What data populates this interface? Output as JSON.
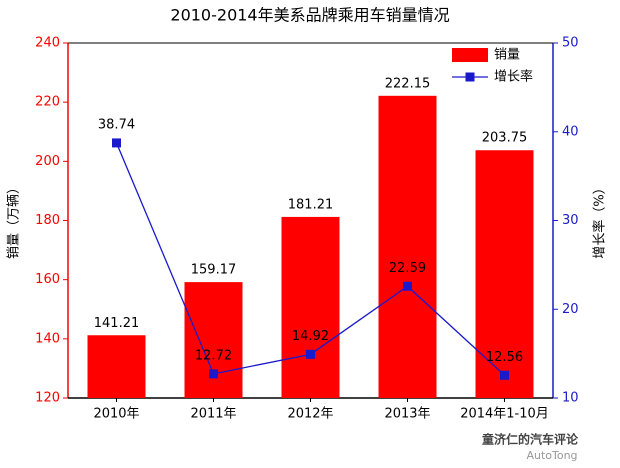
{
  "chart_data": {
    "type": "bar",
    "title": "2010-2014年美系品牌乘用车销量情况",
    "y_label": "销量（万辆）",
    "y2_label": "增长率（%）",
    "categories": [
      "2010年",
      "2011年",
      "2012年",
      "2013年",
      "2014年1-10月"
    ],
    "series": [
      {
        "name": "销量",
        "type": "bar",
        "color": "#ff0000",
        "values": [
          141.21,
          159.17,
          181.21,
          222.15,
          203.75
        ]
      },
      {
        "name": "增长率",
        "type": "line",
        "axis": "y2",
        "color": "#1a1acc",
        "values": [
          38.74,
          12.72,
          14.92,
          22.59,
          12.56
        ]
      }
    ],
    "ylim": [
      120,
      240
    ],
    "yticks": [
      120,
      140,
      160,
      180,
      200,
      220,
      240
    ],
    "y2lim": [
      10,
      50
    ],
    "y2ticks": [
      10,
      20,
      30,
      40,
      50
    ],
    "legend": "upper right",
    "grid": false,
    "annotations": [
      "童济仁的汽车评论",
      "AutoTong"
    ]
  }
}
